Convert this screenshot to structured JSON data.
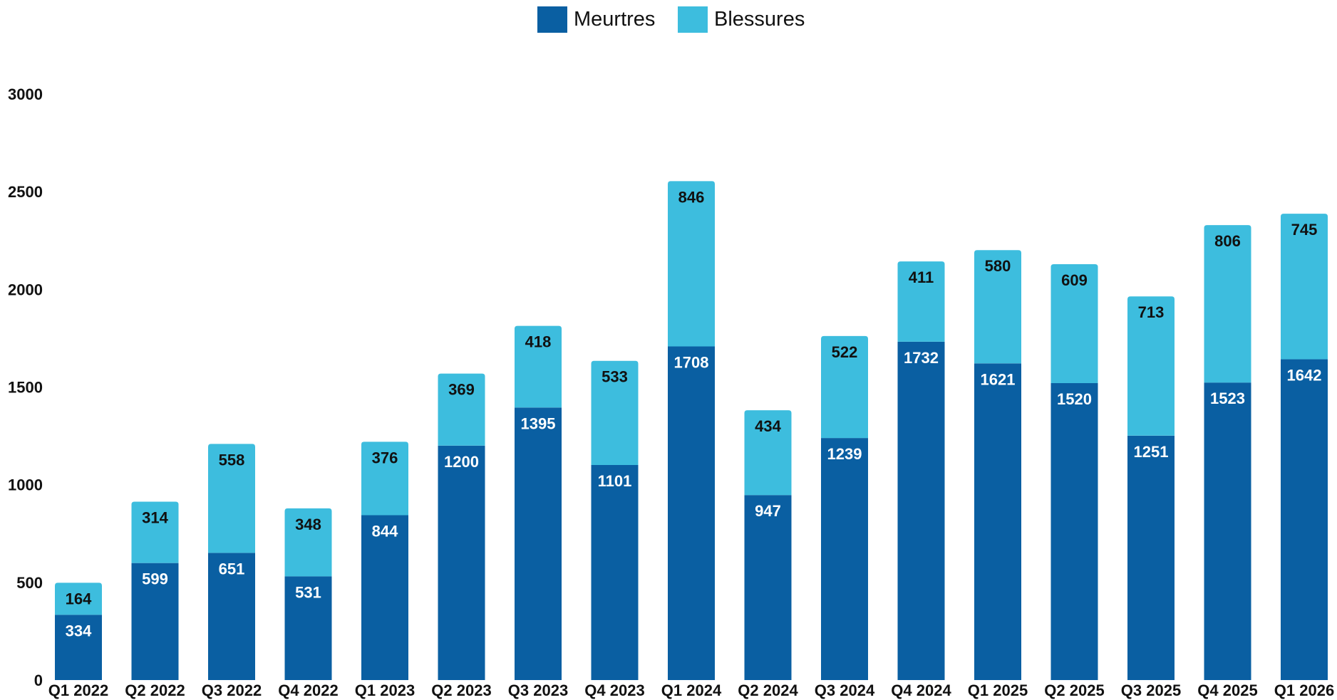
{
  "chart_data": {
    "type": "bar",
    "stacked": true,
    "title": "",
    "xlabel": "",
    "ylabel": "",
    "ylim": [
      0,
      3000
    ],
    "yticks": [
      0,
      500,
      1000,
      1500,
      2000,
      2500,
      3000
    ],
    "grid": false,
    "legend_position": "top-center",
    "categories": [
      "Q1 2022",
      "Q2 2022",
      "Q3 2022",
      "Q4 2022",
      "Q1 2023",
      "Q2 2023",
      "Q3 2023",
      "Q4 2023",
      "Q1 2024",
      "Q2 2024",
      "Q3 2024",
      "Q4 2024",
      "Q1 2025",
      "Q2 2025",
      "Q3 2025",
      "Q4 2025",
      "Q1 2026"
    ],
    "series": [
      {
        "name": "Meurtres",
        "color": "#0a5fa2",
        "label_color": "#ffffff",
        "values": [
          334,
          599,
          651,
          531,
          844,
          1200,
          1395,
          1101,
          1708,
          947,
          1239,
          1732,
          1621,
          1520,
          1251,
          1523,
          1642
        ]
      },
      {
        "name": "Blessures",
        "color": "#3dbdde",
        "label_color": "#111111",
        "values": [
          164,
          314,
          558,
          348,
          376,
          369,
          418,
          533,
          846,
          434,
          522,
          411,
          580,
          609,
          713,
          806,
          745
        ]
      }
    ]
  }
}
